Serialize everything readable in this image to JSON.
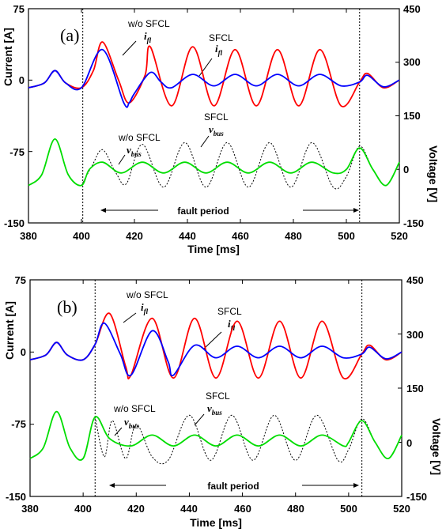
{
  "chart_data": [
    {
      "type": "line",
      "panel_label": "(a)",
      "xlabel": "Time [ms]",
      "ylabel_left": "Current [A]",
      "ylabel_right": "Voltage [V]",
      "xlim": [
        380,
        520
      ],
      "xticks": [
        "380",
        "400",
        "420",
        "440",
        "460",
        "480",
        "500",
        "520"
      ],
      "ylim_left": [
        -150,
        75
      ],
      "yticks_left": [
        "75",
        "0",
        "-75",
        "-150"
      ],
      "ylim_right": [
        -150,
        450
      ],
      "yticks_right": [
        "450",
        "300",
        "150",
        "0",
        "-150"
      ],
      "fault_start": 400.5,
      "fault_end": 505,
      "fault_label": "fault period",
      "series": [
        {
          "axis": "left",
          "color": "#ff0000",
          "x": [
            380,
            386,
            390,
            394,
            400,
            404.5,
            408,
            414,
            418,
            424,
            426,
            434,
            442,
            450,
            458,
            466,
            474,
            482,
            490,
            498,
            505,
            508,
            514,
            520
          ],
          "y": [
            -8,
            -3,
            10,
            -3,
            -8,
            10,
            40,
            0,
            -24,
            5,
            35,
            -27,
            35,
            -27,
            32,
            -27,
            32,
            -27,
            32,
            -27,
            -2,
            7,
            -8,
            0
          ]
        },
        {
          "axis": "left",
          "color": "#0000ff",
          "x": [
            380,
            386,
            390,
            394,
            400,
            408,
            416,
            418,
            420,
            426,
            430,
            434,
            442,
            450,
            458,
            466,
            474,
            482,
            490,
            498,
            505,
            508,
            514,
            520
          ],
          "y": [
            -8,
            -3,
            10,
            -3,
            -8,
            32,
            -24,
            -24,
            -14,
            8,
            -2,
            -8,
            6,
            -6,
            6,
            -6,
            6,
            -6,
            6,
            -6,
            -2,
            5,
            -7,
            0
          ]
        },
        {
          "axis": "right",
          "color": "#00dd00",
          "x": [
            380,
            385,
            390,
            395,
            400,
            403,
            408,
            415,
            423,
            431,
            439,
            447,
            455,
            463,
            471,
            479,
            487,
            495,
            500,
            505,
            510,
            515,
            520
          ],
          "y": [
            -45,
            -15,
            85,
            -15,
            -45,
            0,
            20,
            -10,
            20,
            -10,
            20,
            -10,
            20,
            -10,
            20,
            -10,
            20,
            -10,
            0,
            60,
            0,
            -45,
            20
          ]
        },
        {
          "axis": "right",
          "color": "#000000",
          "dashed": true,
          "x": [
            400,
            404,
            408,
            413,
            417,
            423,
            431,
            439,
            447,
            455,
            463,
            471,
            479,
            487,
            495,
            500,
            505,
            510,
            515,
            520
          ],
          "y": [
            -45,
            10,
            55,
            -10,
            -40,
            70,
            -50,
            75,
            -50,
            75,
            -50,
            75,
            -50,
            75,
            -50,
            -20,
            65,
            0,
            -45,
            20
          ]
        }
      ],
      "annotations": [
        "w/o SFCL",
        "i",
        "fl",
        "SFCL",
        "i",
        "fl",
        "w/o SFCL",
        "v",
        "bus",
        "SFCL",
        "v",
        "bus"
      ]
    },
    {
      "type": "line",
      "panel_label": "(b)",
      "xlabel": "Time [ms]",
      "ylabel_left": "Current [A]",
      "ylabel_right": "Voltage [V]",
      "xlim": [
        380,
        520
      ],
      "xticks": [
        "380",
        "400",
        "420",
        "440",
        "460",
        "480",
        "500",
        "520"
      ],
      "ylim_left": [
        -150,
        75
      ],
      "yticks_left": [
        "75",
        "0",
        "-75",
        "-150"
      ],
      "ylim_right": [
        -150,
        450
      ],
      "yticks_right": [
        "450",
        "300",
        "150",
        "0",
        "-150"
      ],
      "fault_start": 404.5,
      "fault_end": 505,
      "fault_label": "fault period",
      "series": [
        {
          "axis": "left",
          "color": "#ff0000",
          "x": [
            380,
            386,
            390,
            394,
            400,
            404.5,
            410,
            416,
            418,
            426,
            434,
            442,
            450,
            458,
            466,
            474,
            482,
            490,
            498,
            505,
            508,
            514,
            520
          ],
          "y": [
            -8,
            -3,
            10,
            -3,
            -8,
            8,
            40,
            -15,
            -24,
            35,
            -27,
            35,
            -27,
            32,
            -27,
            32,
            -27,
            32,
            -27,
            -2,
            7,
            -8,
            0
          ]
        },
        {
          "axis": "left",
          "color": "#0000ff",
          "x": [
            380,
            386,
            390,
            394,
            400,
            404.5,
            408,
            414,
            418,
            426,
            432,
            434,
            442,
            450,
            458,
            466,
            474,
            482,
            490,
            498,
            505,
            508,
            514,
            520
          ],
          "y": [
            -8,
            -3,
            10,
            -3,
            -8,
            8,
            30,
            -2,
            -24,
            22,
            -10,
            -24,
            7,
            -6,
            6,
            -6,
            6,
            -6,
            6,
            -6,
            -2,
            5,
            -7,
            0
          ]
        },
        {
          "axis": "right",
          "color": "#00dd00",
          "x": [
            380,
            385,
            390,
            395,
            400,
            404.5,
            410,
            418,
            426,
            434,
            442,
            450,
            458,
            466,
            474,
            482,
            490,
            498,
            500,
            505,
            510,
            515,
            520
          ],
          "y": [
            -45,
            -15,
            85,
            -15,
            -45,
            70,
            10,
            -10,
            20,
            -10,
            20,
            -10,
            20,
            -10,
            20,
            -10,
            20,
            -10,
            0,
            60,
            0,
            -45,
            20
          ]
        },
        {
          "axis": "right",
          "color": "#000000",
          "dashed": true,
          "x": [
            404.5,
            408,
            411,
            416,
            420,
            426,
            432,
            440,
            448,
            456,
            464,
            472,
            480,
            488,
            496,
            500,
            505,
            510,
            515,
            520
          ],
          "y": [
            70,
            -40,
            60,
            -45,
            50,
            -40,
            -50,
            75,
            -50,
            75,
            -50,
            75,
            -50,
            75,
            -50,
            -20,
            65,
            0,
            -45,
            20
          ]
        }
      ],
      "annotations": [
        "w/o SFCL",
        "i",
        "fl",
        "SFCL",
        "i",
        "fl",
        "w/o SFCL",
        "v",
        "bus",
        "SFCL",
        "v",
        "bus"
      ]
    }
  ]
}
